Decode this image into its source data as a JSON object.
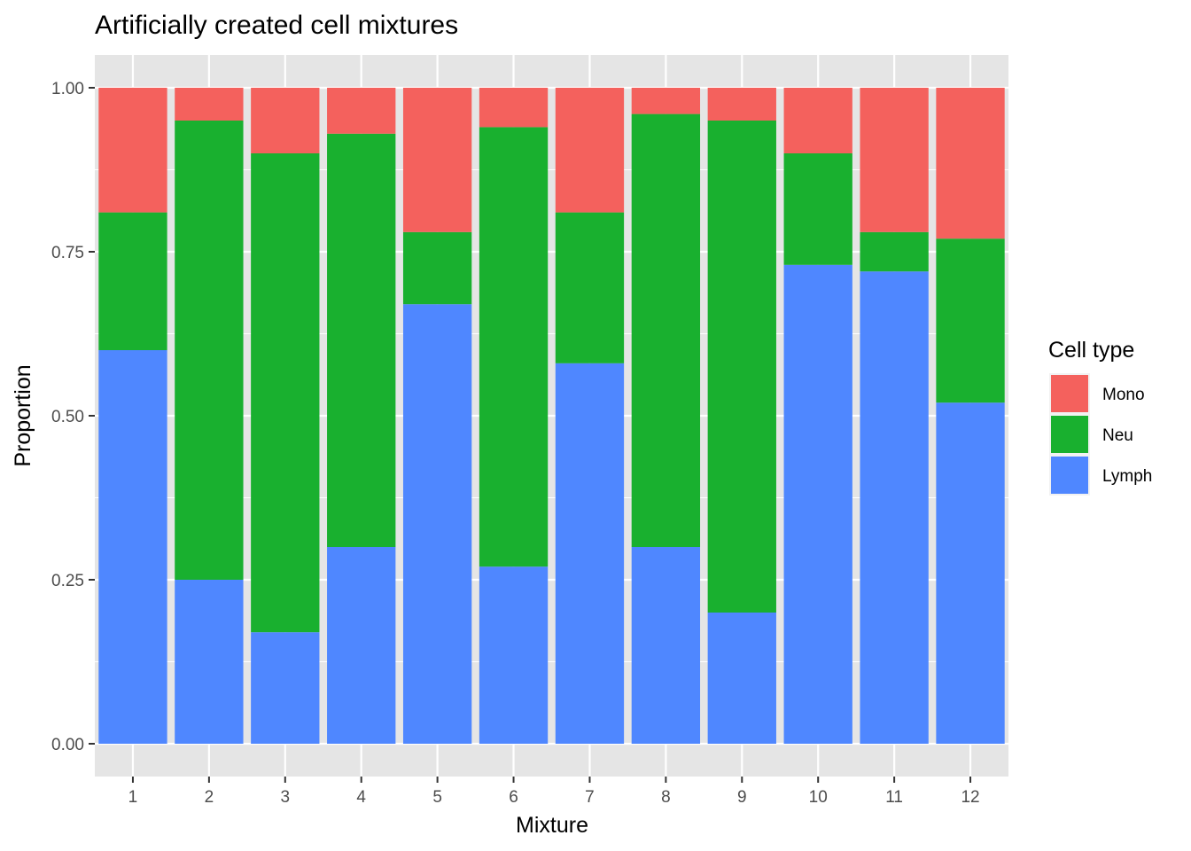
{
  "chart_data": {
    "type": "bar",
    "stacked": true,
    "title": "Artificially created cell mixtures",
    "xlabel": "Mixture",
    "ylabel": "Proportion",
    "ylim": [
      0,
      1
    ],
    "yticks": [
      "0.00",
      "0.25",
      "0.50",
      "0.75",
      "1.00"
    ],
    "categories": [
      "1",
      "2",
      "3",
      "4",
      "5",
      "6",
      "7",
      "8",
      "9",
      "10",
      "11",
      "12"
    ],
    "series": [
      {
        "name": "Lymph",
        "color": "#4F87FF",
        "values": [
          0.6,
          0.25,
          0.17,
          0.3,
          0.67,
          0.27,
          0.58,
          0.3,
          0.2,
          0.73,
          0.72,
          0.52
        ]
      },
      {
        "name": "Neu",
        "color": "#19B02F",
        "values": [
          0.21,
          0.7,
          0.73,
          0.63,
          0.11,
          0.67,
          0.23,
          0.66,
          0.75,
          0.17,
          0.06,
          0.25
        ]
      },
      {
        "name": "Mono",
        "color": "#F4615D",
        "values": [
          0.19,
          0.05,
          0.1,
          0.07,
          0.22,
          0.06,
          0.19,
          0.04,
          0.05,
          0.1,
          0.22,
          0.23
        ]
      }
    ],
    "legend": {
      "title": "Cell type",
      "position": "right",
      "order": [
        "Mono",
        "Neu",
        "Lymph"
      ]
    },
    "grid": true,
    "panel_background": "#E5E5E5"
  }
}
